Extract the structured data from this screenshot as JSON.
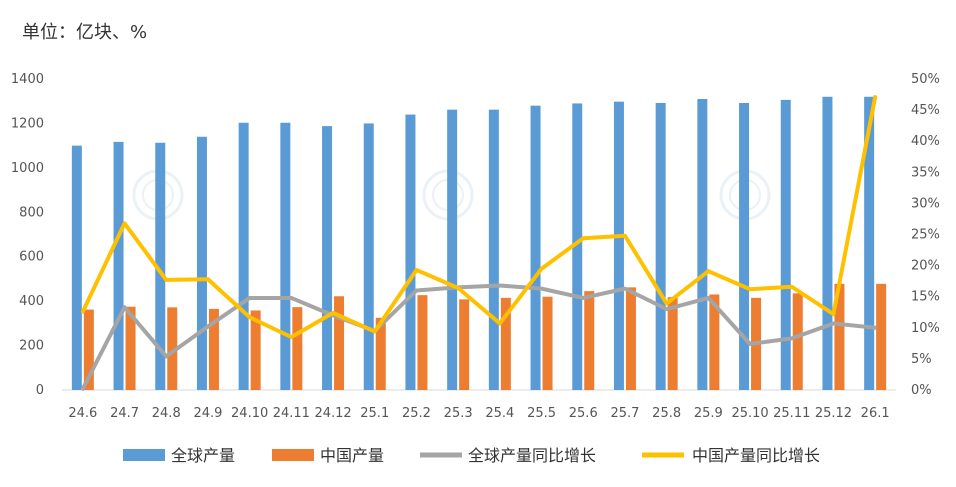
{
  "unit_label": "单位：亿块、%",
  "colors": {
    "global_bar": "#5b9bd5",
    "china_bar": "#ed7d31",
    "global_yoy": "#a5a5a5",
    "china_yoy": "#ffc000"
  },
  "chart_data": {
    "type": "bar",
    "categories": [
      "24.6",
      "24.7",
      "24.8",
      "24.9",
      "24.10",
      "24.11",
      "24.12",
      "25.1",
      "25.2",
      "25.3",
      "25.4",
      "25.5",
      "25.6",
      "25.7",
      "25.8",
      "25.9",
      "25.10",
      "25.11",
      "25.12",
      "26.1"
    ],
    "left_axis": {
      "ylim": [
        0,
        1400
      ],
      "ticks": [
        "0",
        "200",
        "400",
        "600",
        "800",
        "1000",
        "1200",
        "1400"
      ]
    },
    "right_axis": {
      "ylim": [
        0,
        50
      ],
      "ticks": [
        "0%",
        "5%",
        "10%",
        "15%",
        "20%",
        "25%",
        "30%",
        "35%",
        "40%",
        "45%",
        "50%"
      ]
    },
    "series": [
      {
        "name": "全球产量",
        "type": "bar",
        "axis": "left",
        "values": [
          1100,
          1117,
          1113,
          1140,
          1203,
          1203,
          1188,
          1200,
          1240,
          1262,
          1262,
          1280,
          1290,
          1298,
          1292,
          1310,
          1292,
          1306,
          1320,
          1320
        ]
      },
      {
        "name": "中国产量",
        "type": "bar",
        "axis": "left",
        "values": [
          362,
          375,
          372,
          365,
          358,
          373,
          422,
          325,
          427,
          408,
          415,
          420,
          445,
          462,
          418,
          430,
          415,
          435,
          478,
          478
        ]
      },
      {
        "name": "全球产量同比增长",
        "type": "line",
        "axis": "right",
        "values": [
          0.2,
          13.3,
          5.4,
          10.2,
          14.8,
          14.8,
          12.0,
          9.5,
          16.0,
          16.5,
          16.8,
          16.3,
          14.8,
          16.3,
          13.0,
          14.8,
          7.4,
          8.3,
          10.7,
          10.0
        ]
      },
      {
        "name": "中国产量同比增长",
        "type": "line",
        "axis": "right",
        "values": [
          12.6,
          26.8,
          17.7,
          17.8,
          11.7,
          8.5,
          12.4,
          9.4,
          19.3,
          16.4,
          10.7,
          19.5,
          24.4,
          24.8,
          13.9,
          19.1,
          16.2,
          16.6,
          12.2,
          47.1
        ]
      }
    ],
    "legend_position": "bottom",
    "grid": false
  }
}
